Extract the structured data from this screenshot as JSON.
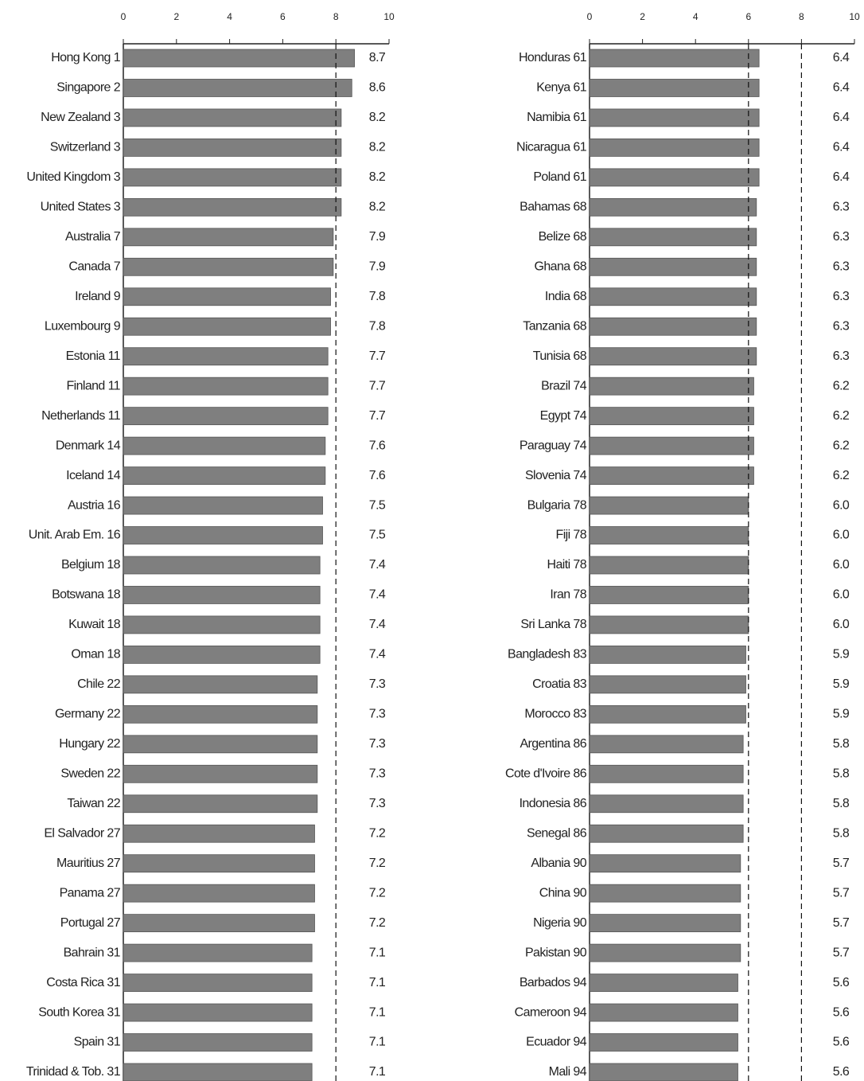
{
  "chart_data": [
    {
      "type": "bar",
      "orientation": "horizontal",
      "color": "#7f7f7f",
      "categories": [
        "Hong Kong 1",
        "Singapore 2",
        "New Zealand 3",
        "Switzerland 3",
        "United Kingdom 3",
        "United States 3",
        "Australia 7",
        "Canada 7",
        "Ireland 9",
        "Luxembourg 9",
        "Estonia 11",
        "Finland 11",
        "Netherlands 11",
        "Denmark 14",
        "Iceland 14",
        "Austria 16",
        "Unit. Arab Em. 16",
        "Belgium 18",
        "Botswana 18",
        "Kuwait 18",
        "Oman 18",
        "Chile 22",
        "Germany 22",
        "Hungary 22",
        "Sweden 22",
        "Taiwan 22",
        "El Salvador 27",
        "Mauritius 27",
        "Panama 27",
        "Portugal 27",
        "Bahrain 31",
        "Costa Rica 31",
        "South Korea 31",
        "Spain 31",
        "Trinidad & Tob. 31"
      ],
      "values": [
        8.7,
        8.6,
        8.2,
        8.2,
        8.2,
        8.2,
        7.9,
        7.9,
        7.8,
        7.8,
        7.7,
        7.7,
        7.7,
        7.6,
        7.6,
        7.5,
        7.5,
        7.4,
        7.4,
        7.4,
        7.4,
        7.3,
        7.3,
        7.3,
        7.3,
        7.3,
        7.2,
        7.2,
        7.2,
        7.2,
        7.1,
        7.1,
        7.1,
        7.1,
        7.1
      ],
      "xlim": [
        0,
        10
      ],
      "xticks": [
        0,
        2,
        4,
        6,
        8,
        10
      ],
      "reference_lines": [
        8
      ]
    },
    {
      "type": "bar",
      "orientation": "horizontal",
      "color": "#7f7f7f",
      "categories": [
        "Honduras 61",
        "Kenya 61",
        "Namibia 61",
        "Nicaragua 61",
        "Poland 61",
        "Bahamas 68",
        "Belize 68",
        "Ghana 68",
        "India 68",
        "Tanzania 68",
        "Tunisia 68",
        "Brazil 74",
        "Egypt 74",
        "Paraguay 74",
        "Slovenia 74",
        "Bulgaria 78",
        "Fiji 78",
        "Haiti 78",
        "Iran 78",
        "Sri Lanka 78",
        "Bangladesh 83",
        "Croatia 83",
        "Morocco 83",
        "Argentina 86",
        "Cote d'Ivoire 86",
        "Indonesia 86",
        "Senegal 86",
        "Albania 90",
        "China 90",
        "Nigeria 90",
        "Pakistan 90",
        "Barbados 94",
        "Cameroon 94",
        "Ecuador 94",
        "Mali 94"
      ],
      "values": [
        6.4,
        6.4,
        6.4,
        6.4,
        6.4,
        6.3,
        6.3,
        6.3,
        6.3,
        6.3,
        6.3,
        6.2,
        6.2,
        6.2,
        6.2,
        6,
        6,
        6,
        6,
        6,
        5.9,
        5.9,
        5.9,
        5.8,
        5.8,
        5.8,
        5.8,
        5.7,
        5.7,
        5.7,
        5.7,
        5.6,
        5.6,
        5.6,
        5.6
      ],
      "value_labels": [
        "6.4",
        "6.4",
        "6.4",
        "6.4",
        "6.4",
        "6.3",
        "6.3",
        "6.3",
        "6.3",
        "6.3",
        "6.3",
        "6.2",
        "6.2",
        "6.2",
        "6.2",
        "6.0",
        "6.0",
        "6.0",
        "6.0",
        "6.0",
        "5.9",
        "5.9",
        "5.9",
        "5.8",
        "5.8",
        "5.8",
        "5.8",
        "5.7",
        "5.7",
        "5.7",
        "5.7",
        "5.6",
        "5.6",
        "5.6",
        "5.6"
      ],
      "xlim": [
        0,
        10
      ],
      "xticks": [
        0,
        2,
        4,
        6,
        8,
        10
      ],
      "reference_lines": [
        6,
        8
      ]
    }
  ]
}
